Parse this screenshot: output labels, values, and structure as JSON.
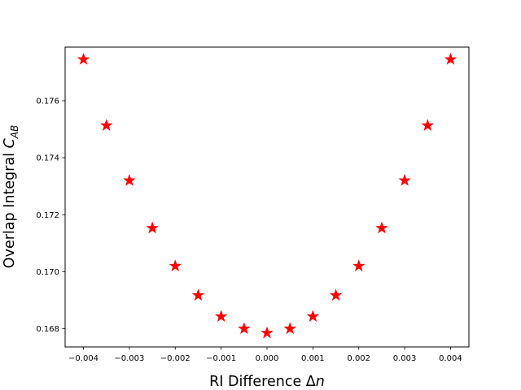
{
  "chart_data": {
    "type": "scatter",
    "title": "",
    "xlabel": "RI Difference Δn",
    "xlabel_parts": {
      "text": "RI Difference Δ",
      "italic": "n"
    },
    "ylabel": "Overlap Integral C_AB",
    "ylabel_parts": {
      "text": "Overlap Integral ",
      "italic": "C",
      "subscript": "AB"
    },
    "xlim": [
      -0.0044,
      0.0044
    ],
    "ylim": [
      0.16736,
      0.17788
    ],
    "xticks": [
      -0.004,
      -0.003,
      -0.002,
      -0.001,
      0.0,
      0.001,
      0.002,
      0.003,
      0.004
    ],
    "xtick_labels": [
      "−0.004",
      "−0.003",
      "−0.002",
      "−0.001",
      "0.000",
      "0.001",
      "0.002",
      "0.003",
      "0.004"
    ],
    "yticks": [
      0.168,
      0.17,
      0.172,
      0.174,
      0.176
    ],
    "ytick_labels": [
      "0.168",
      "0.170",
      "0.172",
      "0.174",
      "0.176"
    ],
    "grid": false,
    "marker": "star",
    "color": "#ff0000",
    "series": [
      {
        "x": [
          -0.004,
          -0.0035,
          -0.003,
          -0.0025,
          -0.002,
          -0.0015,
          -0.001,
          -0.0005,
          0.0,
          0.0005,
          0.001,
          0.0015,
          0.002,
          0.0025,
          0.003,
          0.0035,
          0.004
        ],
        "y": [
          0.17745,
          0.17513,
          0.1732,
          0.17153,
          0.1702,
          0.16917,
          0.16843,
          0.168,
          0.16785,
          0.168,
          0.16843,
          0.16917,
          0.1702,
          0.17153,
          0.1732,
          0.17513,
          0.17745
        ]
      }
    ]
  }
}
